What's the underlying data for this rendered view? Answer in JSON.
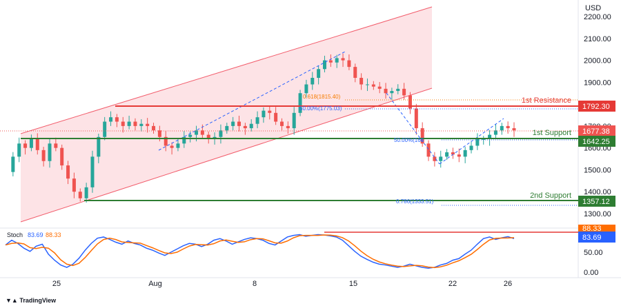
{
  "currency_label": "USD",
  "colors": {
    "up": "#26a69a",
    "down": "#ef5350",
    "resistance": "#e53935",
    "support": "#2e7d32",
    "channel_fill": "#fde3e6",
    "channel_line": "#f25c6b",
    "k_line": "#2962ff",
    "d_line": "#ff6d00",
    "fib": "#2962ff",
    "fib_618": "#f57c00"
  },
  "price_axis": [
    "2200.00",
    "2100.00",
    "2000.00",
    "1900.00",
    "1800.00",
    "1700.00",
    "1600.00",
    "1500.00",
    "1400.00",
    "1300.00"
  ],
  "osc_axis": [
    "50.00",
    "0.00"
  ],
  "time_axis": [
    "25",
    "Aug",
    "8",
    "15",
    "22",
    "26"
  ],
  "annotations": {
    "resistance": "1st Resistance",
    "support1": "1st Support",
    "support2": "2nd Support",
    "fib618": "0.618(1815.40)",
    "fib50_upper": "50.00%(1775.03)",
    "fib50_lower": "50.00%(166",
    "fib786": "0.786(1333.51)"
  },
  "price_tags": {
    "resistance": "1792.30",
    "last": "1677.38",
    "support1": "1642.25",
    "support2": "1357.12",
    "osc_top": "88.33",
    "osc_k": "83.69"
  },
  "stoch": {
    "label": "Stoch",
    "k": "83.69",
    "d": "88.33"
  },
  "logo": "TradingView",
  "chart_data": {
    "type": "candlestick",
    "ylabel": "USD",
    "ylim": [
      1200,
      2250
    ],
    "levels": {
      "first_resistance": 1792.3,
      "first_support": 1642.25,
      "second_support": 1357.12,
      "last_price": 1677.38,
      "fib_0618": 1815.4,
      "fib_050": 1775.03,
      "fib_0786": 1333.51
    },
    "price_path": [
      1490,
      1560,
      1620,
      1600,
      1640,
      1590,
      1540,
      1620,
      1600,
      1520,
      1460,
      1400,
      1370,
      1420,
      1560,
      1650,
      1720,
      1740,
      1720,
      1700,
      1720,
      1700,
      1710,
      1700,
      1680,
      1650,
      1610,
      1600,
      1620,
      1650,
      1660,
      1680,
      1660,
      1640,
      1650,
      1680,
      1700,
      1720,
      1700,
      1690,
      1710,
      1740,
      1770,
      1760,
      1720,
      1700,
      1690,
      1760,
      1850,
      1890,
      1920,
      1960,
      2000,
      1990,
      2010,
      2000,
      1970,
      1920,
      1890,
      1890,
      1880,
      1870,
      1850,
      1860,
      1870,
      1840,
      1780,
      1690,
      1620,
      1560,
      1540,
      1560,
      1580,
      1570,
      1560,
      1590,
      1610,
      1640,
      1640,
      1660,
      1680,
      1700,
      1690,
      1680
    ],
    "stoch_k_range": [
      0,
      100
    ],
    "stoch_values": [
      68,
      80,
      72,
      60,
      52,
      65,
      70,
      45,
      30,
      18,
      12,
      20,
      35,
      55,
      72,
      85,
      88,
      82,
      75,
      70,
      78,
      72,
      68,
      60,
      55,
      48,
      42,
      50,
      58,
      66,
      72,
      70,
      64,
      70,
      80,
      84,
      78,
      70,
      76,
      82,
      86,
      84,
      80,
      72,
      68,
      78,
      88,
      92,
      94,
      90,
      92,
      94,
      93,
      91,
      88,
      80,
      66,
      52,
      40,
      32,
      25,
      20,
      18,
      15,
      12,
      15,
      20,
      16,
      12,
      10,
      12,
      18,
      22,
      30,
      34,
      45,
      55,
      70,
      84,
      88,
      82,
      86,
      89,
      84
    ]
  }
}
